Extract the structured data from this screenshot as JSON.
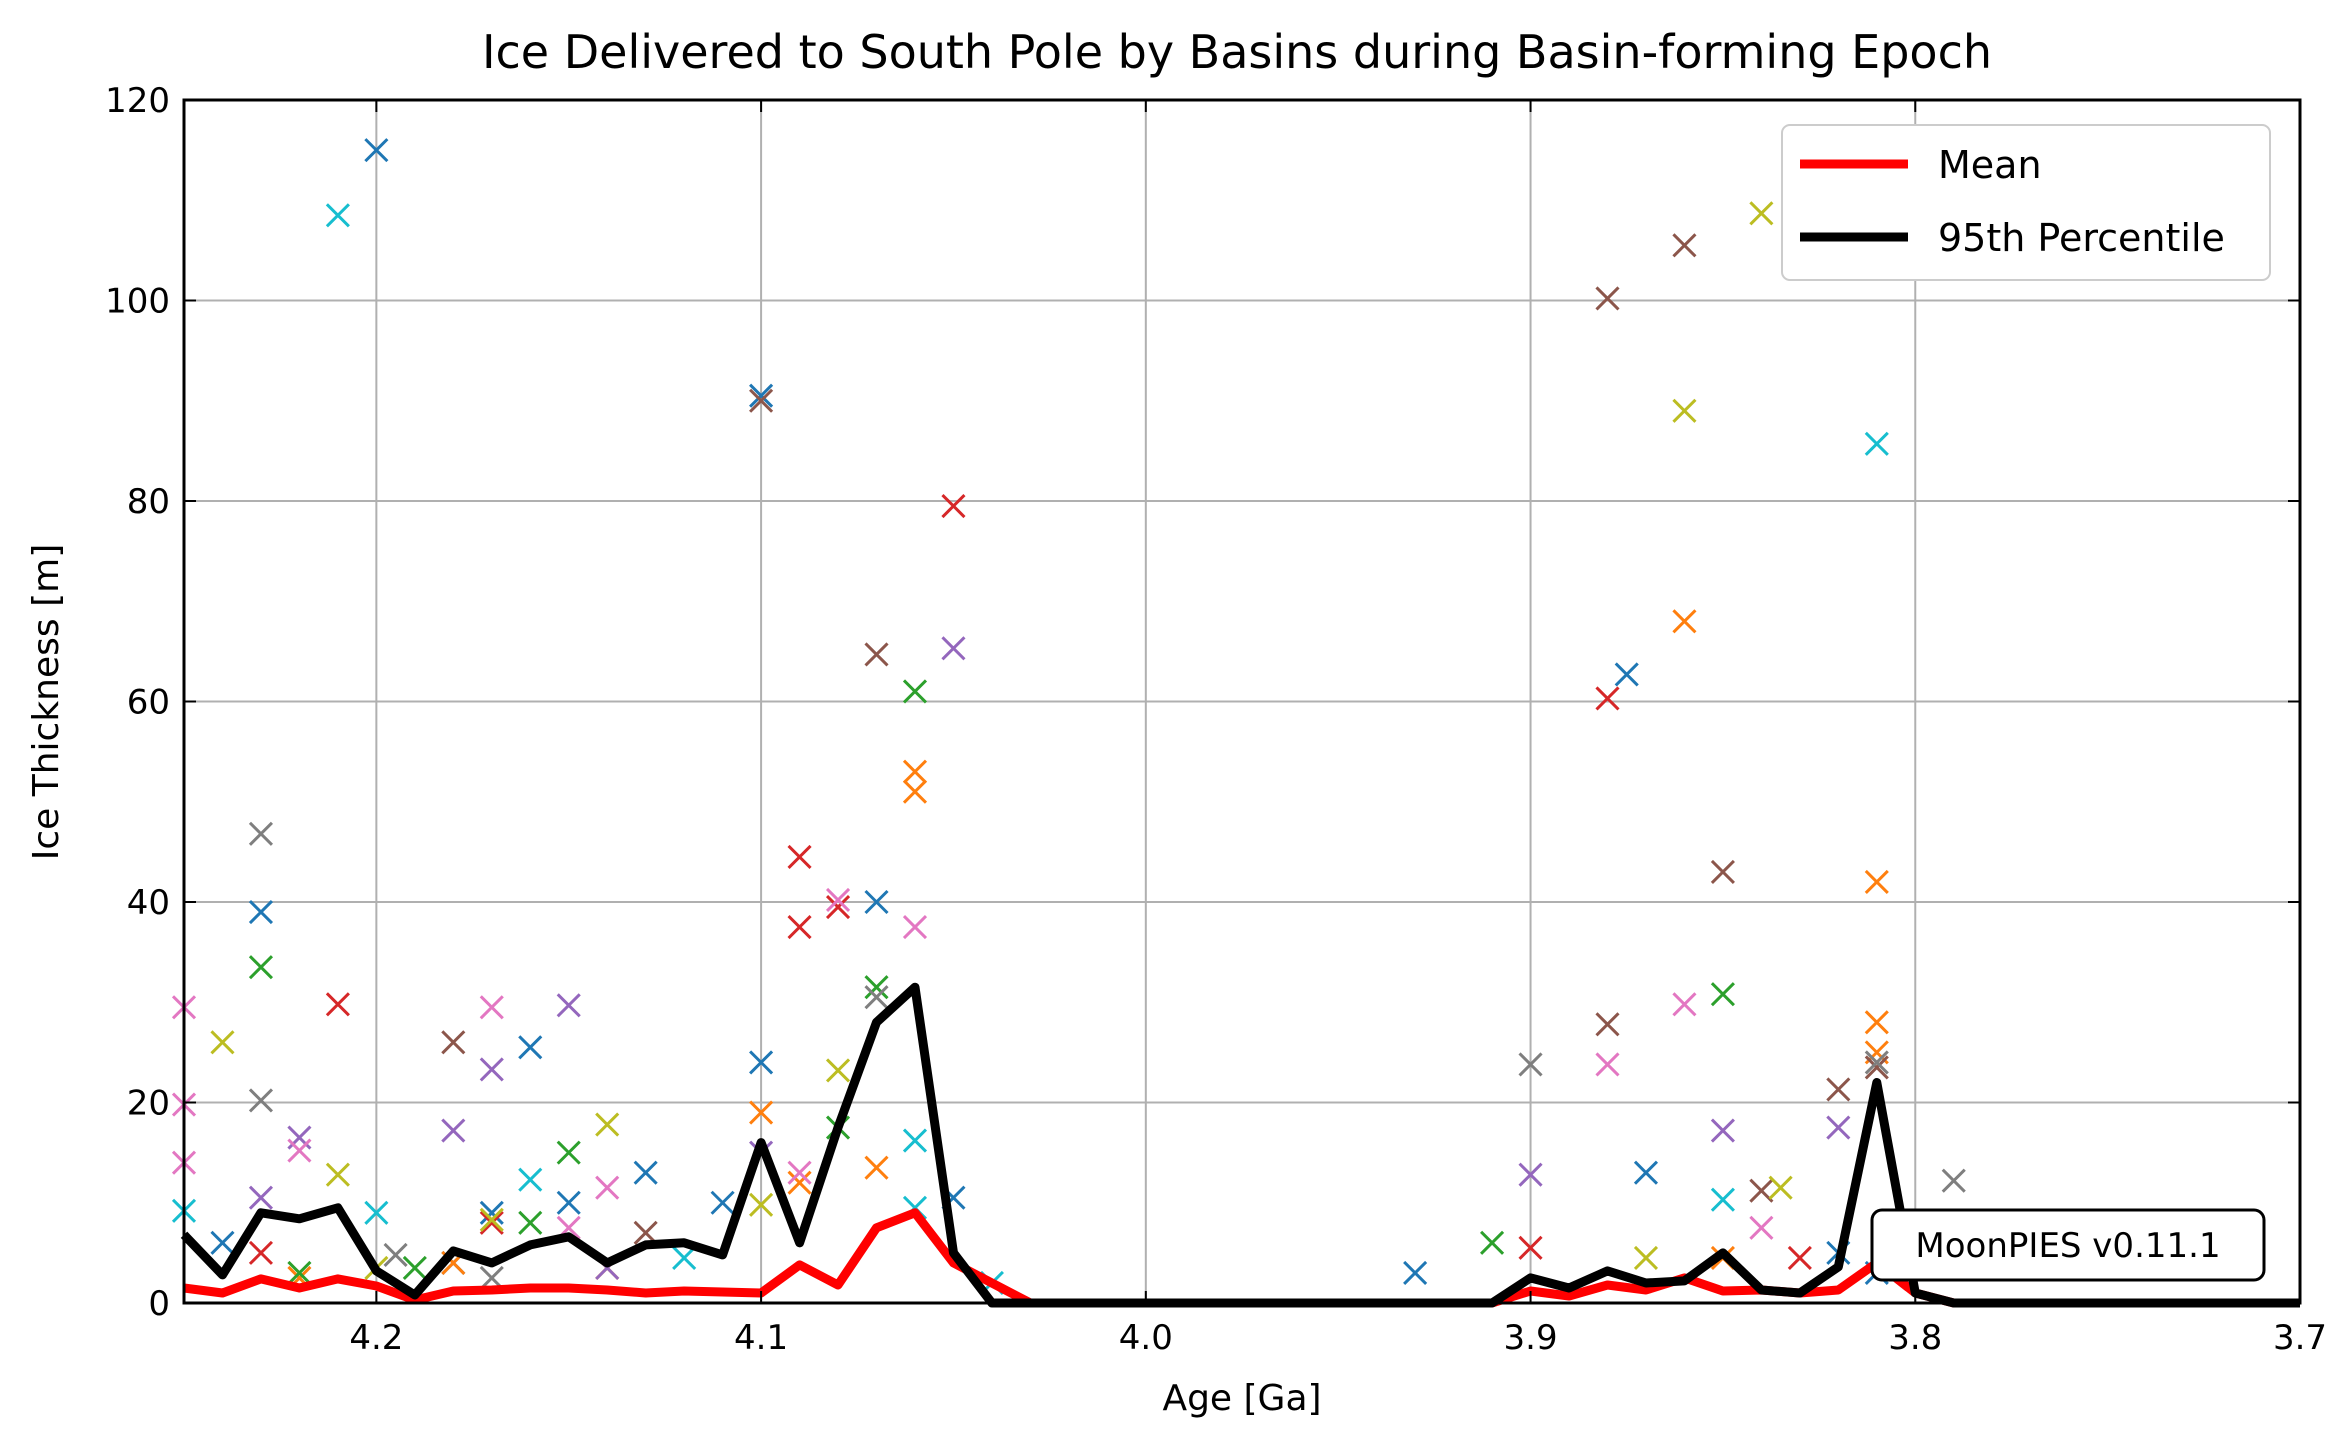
{
  "chart_data": {
    "type": "scatter",
    "title": "Ice Delivered to South Pole by Basins during Basin-forming Epoch",
    "xlabel": "Age [Ga]",
    "ylabel": "Ice Thickness [m]",
    "xlim": [
      4.25,
      3.7
    ],
    "ylim": [
      0,
      120
    ],
    "x_reversed": true,
    "grid": true,
    "xticks": [
      4.2,
      4.1,
      4.0,
      3.9,
      3.8,
      3.7
    ],
    "xtick_labels": [
      "4.2",
      "4.1",
      "4.0",
      "3.9",
      "3.8",
      "3.7"
    ],
    "yticks": [
      0,
      20,
      40,
      60,
      80,
      100,
      120
    ],
    "ytick_labels": [
      "0",
      "20",
      "40",
      "60",
      "80",
      "100",
      "120"
    ],
    "legend_position": "top-right",
    "annotation": "MoonPIES v0.11.1",
    "series": [
      {
        "name": "Mean",
        "kind": "line",
        "color": "#ff0000",
        "x": [
          4.25,
          4.24,
          4.23,
          4.22,
          4.21,
          4.2,
          4.19,
          4.18,
          4.17,
          4.16,
          4.15,
          4.14,
          4.13,
          4.12,
          4.11,
          4.1,
          4.09,
          4.08,
          4.07,
          4.06,
          4.05,
          4.04,
          4.03,
          3.91,
          3.9,
          3.89,
          3.88,
          3.87,
          3.86,
          3.85,
          3.84,
          3.83,
          3.82,
          3.81,
          3.8,
          3.79,
          3.7
        ],
        "y": [
          1.5,
          1.0,
          2.4,
          1.5,
          2.4,
          1.7,
          0.3,
          1.2,
          1.3,
          1.5,
          1.5,
          1.3,
          1.0,
          1.2,
          1.1,
          1.0,
          3.8,
          1.8,
          7.5,
          9.0,
          4.0,
          2.0,
          0,
          0,
          1.2,
          0.7,
          1.8,
          1.3,
          2.5,
          1.2,
          1.3,
          1.0,
          1.3,
          4.0,
          1.0,
          0,
          0
        ]
      },
      {
        "name": "95th Percentile",
        "kind": "line",
        "color": "#000000",
        "x": [
          4.25,
          4.24,
          4.23,
          4.22,
          4.21,
          4.2,
          4.19,
          4.18,
          4.17,
          4.16,
          4.15,
          4.14,
          4.13,
          4.12,
          4.11,
          4.1,
          4.09,
          4.08,
          4.07,
          4.06,
          4.05,
          4.04,
          4.03,
          3.91,
          3.9,
          3.89,
          3.88,
          3.87,
          3.86,
          3.85,
          3.84,
          3.83,
          3.82,
          3.81,
          3.8,
          3.79,
          3.7
        ],
        "y": [
          6.8,
          2.8,
          9.0,
          8.4,
          9.5,
          3.2,
          0.8,
          5.2,
          4.0,
          5.8,
          6.6,
          4.0,
          5.8,
          6.0,
          4.8,
          16.0,
          6.0,
          17.5,
          28.0,
          31.5,
          5.0,
          0,
          0,
          0,
          2.5,
          1.5,
          3.2,
          2.0,
          2.2,
          5.0,
          1.3,
          1.0,
          3.6,
          22.0,
          1.0,
          0,
          0
        ]
      },
      {
        "name": "",
        "kind": "markers",
        "color": "#1f77b4",
        "x": [
          4.2,
          4.24,
          4.23,
          4.18,
          4.17,
          4.16,
          4.15,
          4.13,
          4.11,
          4.1,
          4.1,
          3.875,
          3.87,
          3.82,
          3.81,
          4.07,
          4.05,
          3.93
        ],
        "y": [
          115,
          6,
          39,
          4,
          9,
          25.5,
          10,
          13,
          10,
          90.5,
          24,
          62.7,
          13,
          5,
          3,
          40,
          10.5,
          3
        ]
      },
      {
        "name": "",
        "kind": "markers",
        "color": "#ff7f0e",
        "x": [
          4.22,
          4.1,
          4.09,
          4.07,
          4.06,
          4.06,
          3.86,
          3.81,
          3.81,
          3.81,
          4.18,
          4.14,
          3.85
        ],
        "y": [
          2.5,
          19,
          12,
          13.5,
          53,
          51,
          68,
          42,
          28,
          25,
          4,
          3.5,
          4.5
        ]
      },
      {
        "name": "",
        "kind": "markers",
        "color": "#2ca02c",
        "x": [
          4.23,
          4.16,
          4.15,
          4.06,
          4.07,
          4.08,
          3.85,
          3.91,
          4.22,
          4.19
        ],
        "y": [
          33.5,
          8,
          15,
          61,
          31.5,
          17.5,
          30.8,
          6,
          3,
          3.5
        ]
      },
      {
        "name": "",
        "kind": "markers",
        "color": "#d62728",
        "x": [
          4.21,
          4.09,
          4.09,
          4.08,
          4.05,
          3.88,
          3.9,
          4.23,
          3.83,
          4.17
        ],
        "y": [
          29.8,
          44.5,
          37.5,
          39.5,
          79.5,
          60.3,
          5.5,
          5,
          4.5,
          8
        ]
      },
      {
        "name": "",
        "kind": "markers",
        "color": "#9467bd",
        "x": [
          4.22,
          4.18,
          4.17,
          4.15,
          4.05,
          4.1,
          3.9,
          3.85,
          3.82,
          4.23,
          4.14
        ],
        "y": [
          16.5,
          17.2,
          23.3,
          29.7,
          65.3,
          15,
          12.8,
          17.2,
          17.5,
          10.5,
          3.5
        ]
      },
      {
        "name": "",
        "kind": "markers",
        "color": "#8c564b",
        "x": [
          4.18,
          4.1,
          4.07,
          3.88,
          3.88,
          3.86,
          3.85,
          3.82,
          3.81,
          4.13,
          3.84
        ],
        "y": [
          26,
          90,
          64.7,
          100.2,
          27.8,
          105.5,
          43,
          21.3,
          23.5,
          7,
          11.2
        ]
      },
      {
        "name": "",
        "kind": "markers",
        "color": "#e377c2",
        "x": [
          4.25,
          4.25,
          4.25,
          4.22,
          4.17,
          4.14,
          4.09,
          4.08,
          4.06,
          3.88,
          3.86,
          3.84,
          4.15
        ],
        "y": [
          29.5,
          19.8,
          14,
          15.2,
          29.5,
          11.5,
          13,
          40.2,
          37.5,
          23.8,
          29.8,
          7.5,
          7.5
        ]
      },
      {
        "name": "",
        "kind": "markers",
        "color": "#7f7f7f",
        "x": [
          4.23,
          4.23,
          4.195,
          3.9,
          3.79,
          3.81,
          4.07,
          4.17
        ],
        "y": [
          46.8,
          20.2,
          4.8,
          23.8,
          12.2,
          24,
          30.5,
          2.5
        ]
      },
      {
        "name": "",
        "kind": "markers",
        "color": "#bcbd22",
        "x": [
          4.24,
          4.21,
          4.17,
          4.14,
          4.08,
          4.1,
          3.86,
          3.84,
          3.835,
          3.87,
          4.2
        ],
        "y": [
          26,
          12.8,
          8.3,
          17.8,
          23.2,
          9.8,
          89,
          108.7,
          11.5,
          4.5,
          3.5
        ]
      },
      {
        "name": "",
        "kind": "markers",
        "color": "#17becf",
        "x": [
          4.21,
          4.2,
          4.25,
          4.16,
          4.06,
          4.06,
          3.81,
          3.85,
          4.12,
          4.04
        ],
        "y": [
          108.5,
          9,
          9.2,
          12.3,
          16.2,
          9.5,
          85.7,
          10.3,
          4.5,
          2
        ]
      }
    ]
  }
}
